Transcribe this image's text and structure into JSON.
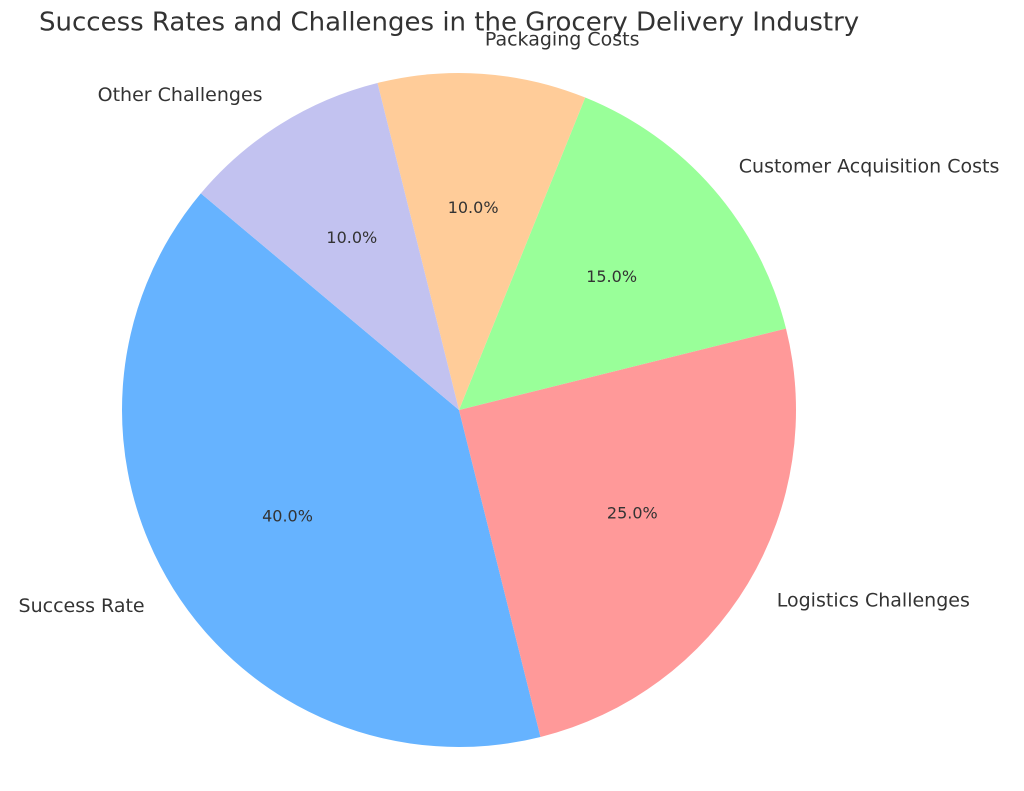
{
  "chart_data": {
    "type": "pie",
    "title": "Success Rates and Challenges in the Grocery Delivery Industry",
    "categories": [
      "Success Rate",
      "Logistics Challenges",
      "Customer Acquisition Costs",
      "Packaging Costs",
      "Other Challenges"
    ],
    "values": [
      40,
      25,
      15,
      10,
      10
    ],
    "value_labels": [
      "40.0%",
      "25.0%",
      "15.0%",
      "10.0%",
      "10.0%"
    ],
    "colors": [
      "#66b3ff",
      "#ff9999",
      "#99ff99",
      "#ffcc99",
      "#c2c2f0"
    ],
    "start_angle": 140
  }
}
